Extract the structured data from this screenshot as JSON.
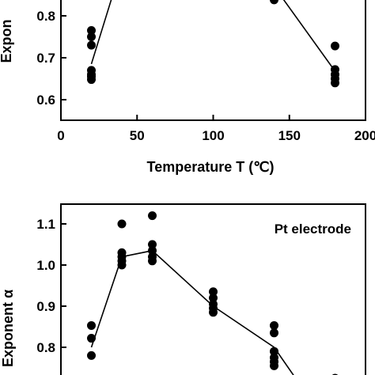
{
  "chart_data": [
    {
      "type": "scatter",
      "xlabel": "Temperature T (℃)",
      "ylabel": "Expon",
      "x_ticks": [
        0,
        50,
        100,
        150,
        200
      ],
      "x_tick_labels": [
        "0",
        "50",
        "100",
        "150",
        "200"
      ],
      "y_ticks": [
        0.6,
        0.7,
        0.8
      ],
      "y_tick_labels": [
        "0.6",
        "0.7",
        "0.8"
      ],
      "xlim": [
        0,
        200
      ],
      "ylim": [
        0.55,
        0.87
      ],
      "grid": false,
      "points": [
        {
          "x": 20,
          "y": 0.765
        },
        {
          "x": 20,
          "y": 0.75
        },
        {
          "x": 20,
          "y": 0.73
        },
        {
          "x": 20,
          "y": 0.67
        },
        {
          "x": 20,
          "y": 0.66
        },
        {
          "x": 20,
          "y": 0.655
        },
        {
          "x": 20,
          "y": 0.648
        },
        {
          "x": 140,
          "y": 0.838
        },
        {
          "x": 180,
          "y": 0.728
        },
        {
          "x": 180,
          "y": 0.672
        },
        {
          "x": 180,
          "y": 0.66
        },
        {
          "x": 180,
          "y": 0.65
        },
        {
          "x": 180,
          "y": 0.64
        }
      ],
      "fit_line": [
        {
          "x": 20,
          "y": 0.685
        },
        {
          "x": 40,
          "y": 0.92
        },
        {
          "x": 140,
          "y": 0.87
        },
        {
          "x": 180,
          "y": 0.668
        }
      ]
    },
    {
      "type": "scatter",
      "annotation": "Pt electrode",
      "ylabel": "Exponent α",
      "y_ticks": [
        0.8,
        0.9,
        1.0,
        1.1
      ],
      "y_tick_labels": [
        "0.8",
        "0.9",
        "1.0",
        "1.1"
      ],
      "xlim": [
        0,
        200
      ],
      "ylim": [
        0.72,
        1.15
      ],
      "grid": false,
      "points": [
        {
          "x": 20,
          "y": 0.853
        },
        {
          "x": 20,
          "y": 0.822
        },
        {
          "x": 20,
          "y": 0.78
        },
        {
          "x": 40,
          "y": 1.1
        },
        {
          "x": 40,
          "y": 1.03
        },
        {
          "x": 40,
          "y": 1.02
        },
        {
          "x": 40,
          "y": 1.01
        },
        {
          "x": 40,
          "y": 1.0
        },
        {
          "x": 60,
          "y": 1.12
        },
        {
          "x": 60,
          "y": 1.05
        },
        {
          "x": 60,
          "y": 1.035
        },
        {
          "x": 60,
          "y": 1.02
        },
        {
          "x": 60,
          "y": 1.01
        },
        {
          "x": 100,
          "y": 0.935
        },
        {
          "x": 100,
          "y": 0.92
        },
        {
          "x": 100,
          "y": 0.905
        },
        {
          "x": 100,
          "y": 0.895
        },
        {
          "x": 100,
          "y": 0.885
        },
        {
          "x": 140,
          "y": 0.853
        },
        {
          "x": 140,
          "y": 0.835
        },
        {
          "x": 140,
          "y": 0.79
        },
        {
          "x": 140,
          "y": 0.775
        },
        {
          "x": 140,
          "y": 0.765
        },
        {
          "x": 140,
          "y": 0.755
        },
        {
          "x": 180,
          "y": 0.725
        }
      ],
      "fit_line": [
        {
          "x": 20,
          "y": 0.8
        },
        {
          "x": 40,
          "y": 1.02
        },
        {
          "x": 60,
          "y": 1.035
        },
        {
          "x": 100,
          "y": 0.9
        },
        {
          "x": 140,
          "y": 0.8
        },
        {
          "x": 155,
          "y": 0.72
        }
      ]
    }
  ]
}
